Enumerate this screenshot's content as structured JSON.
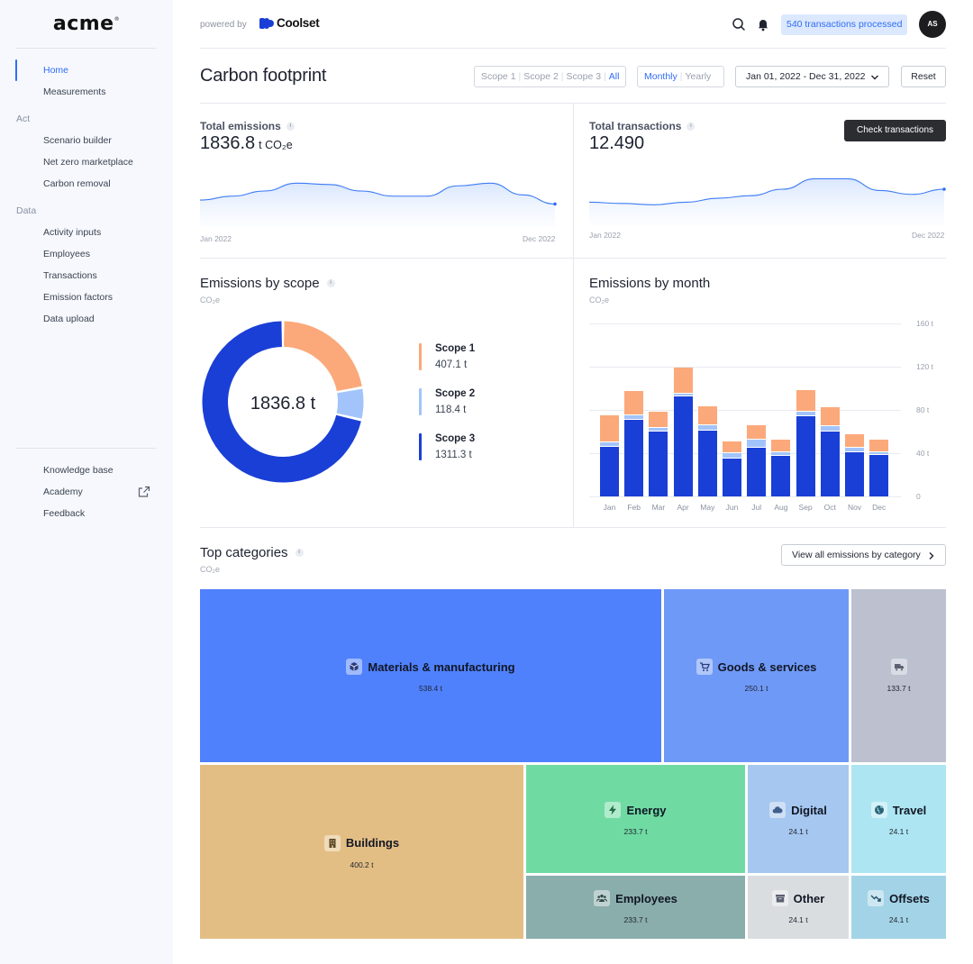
{
  "brand": {
    "logo": "acme",
    "powered_by": "powered by",
    "partner": "Coolset"
  },
  "sidebar": {
    "top_items": [
      "Home",
      "Measurements"
    ],
    "act_label": "Act",
    "act_items": [
      "Scenario builder",
      "Net zero marketplace",
      "Carbon removal"
    ],
    "data_label": "Data",
    "data_items": [
      "Activity inputs",
      "Employees",
      "Transactions",
      "Emission factors",
      "Data upload"
    ],
    "footer_items": [
      "Knowledge base",
      "Academy",
      "Feedback"
    ]
  },
  "header": {
    "transactions_badge": "540 transactions processed",
    "avatar_initials": "AS"
  },
  "toolbar": {
    "title": "Carbon footprint",
    "scopes": [
      "Scope 1",
      "Scope 2",
      "Scope 3",
      "All"
    ],
    "periods": [
      "Monthly",
      "Yearly"
    ],
    "date_range": "Jan 01, 2022 - Dec 31, 2022",
    "reset": "Reset"
  },
  "kpi": {
    "emissions": {
      "label": "Total emissions",
      "value": "1836.8",
      "unit": "t CO₂e",
      "start": "Jan 2022",
      "end": "Dec 2022"
    },
    "transactions": {
      "label": "Total transactions",
      "value": "12.490",
      "button": "Check transactions",
      "start": "Jan 2022",
      "end": "Dec 2022"
    }
  },
  "scope_chart": {
    "title": "Emissions by scope",
    "subtitle": "CO₂e",
    "total": "1836.8 t",
    "legend": [
      {
        "name": "Scope 1",
        "value": "407.1 t",
        "color": "#fba97a"
      },
      {
        "name": "Scope 2",
        "value": "118.4 t",
        "color": "#a3c4fb"
      },
      {
        "name": "Scope 3",
        "value": "1311.3 t",
        "color": "#1a3fd6"
      }
    ]
  },
  "month_chart": {
    "title": "Emissions by month",
    "subtitle": "CO₂e"
  },
  "categories": {
    "title": "Top categories",
    "subtitle": "CO₂e",
    "button": "View all emissions by category",
    "tiles": [
      {
        "name": "Materials & manufacturing",
        "value": "538.4 t",
        "color": "#5081fc",
        "icon": "cube-icon"
      },
      {
        "name": "Goods & services",
        "value": "250.1 t",
        "color": "#6f99f6",
        "icon": "cart-icon"
      },
      {
        "name": "",
        "value": "133.7 t",
        "color": "#bcc0cf",
        "icon": "truck-icon"
      },
      {
        "name": "Buildings",
        "value": "400.2 t",
        "color": "#e3be84",
        "icon": "building-icon"
      },
      {
        "name": "Energy",
        "value": "233.7 t",
        "color": "#6fdba3",
        "icon": "bolt-icon"
      },
      {
        "name": "Digital",
        "value": "24.1 t",
        "color": "#a6c7ef",
        "icon": "cloud-icon"
      },
      {
        "name": "Travel",
        "value": "24.1 t",
        "color": "#ade6f2",
        "icon": "globe-icon"
      },
      {
        "name": "Employees",
        "value": "233.7 t",
        "color": "#8aaeab",
        "icon": "people-icon"
      },
      {
        "name": "Other",
        "value": "24.1 t",
        "color": "#dadde0",
        "icon": "archive-icon"
      },
      {
        "name": "Offsets",
        "value": "24.1 t",
        "color": "#a3d3e6",
        "icon": "trend-down-icon"
      }
    ]
  },
  "chart_data": [
    {
      "type": "area",
      "title": "Total emissions",
      "x": [
        "Jan 2022",
        "Feb 2022",
        "Mar 2022",
        "Apr 2022",
        "May 2022",
        "Jun 2022",
        "Jul 2022",
        "Aug 2022",
        "Sep 2022",
        "Oct 2022",
        "Nov 2022",
        "Dec 2022"
      ],
      "values": [
        36,
        42,
        50,
        62,
        60,
        50,
        42,
        42,
        58,
        62,
        44,
        30
      ],
      "ylim": [
        0,
        100
      ]
    },
    {
      "type": "area",
      "title": "Total transactions",
      "x": [
        "Jan 2022",
        "Feb 2022",
        "Mar 2022",
        "Apr 2022",
        "May 2022",
        "Jun 2022",
        "Jul 2022",
        "Aug 2022",
        "Sep 2022",
        "Oct 2022",
        "Nov 2022",
        "Dec 2022"
      ],
      "values": [
        30,
        28,
        26,
        30,
        36,
        40,
        50,
        66,
        66,
        48,
        42,
        50
      ],
      "ylim": [
        0,
        100
      ]
    },
    {
      "type": "pie",
      "title": "Emissions by scope",
      "categories": [
        "Scope 1",
        "Scope 2",
        "Scope 3"
      ],
      "values": [
        407.1,
        118.4,
        1311.3
      ],
      "unit": "t CO₂e"
    },
    {
      "type": "bar",
      "stacked": true,
      "title": "Emissions by month",
      "ylabel": "CO₂e",
      "categories": [
        "Jan",
        "Feb",
        "Mar",
        "Apr",
        "May",
        "Jun",
        "Jul",
        "Aug",
        "Sep",
        "Oct",
        "Nov",
        "Dec"
      ],
      "series": [
        {
          "name": "Scope 3",
          "color": "#1a3fd6",
          "values": [
            47,
            72,
            61,
            93,
            62,
            36,
            46,
            38,
            75,
            61,
            42,
            39
          ]
        },
        {
          "name": "Scope 2",
          "color": "#a3c4fb",
          "values": [
            4,
            4,
            3,
            3,
            5,
            5,
            7,
            4,
            4,
            5,
            4,
            3
          ]
        },
        {
          "name": "Scope 1",
          "color": "#fba97a",
          "values": [
            25,
            22,
            15,
            24,
            17,
            11,
            14,
            11,
            20,
            17,
            12,
            11
          ]
        }
      ],
      "yticks": [
        "0",
        "40 t",
        "80 t",
        "120 t",
        "160 t"
      ],
      "ylim": [
        0,
        160
      ]
    }
  ]
}
